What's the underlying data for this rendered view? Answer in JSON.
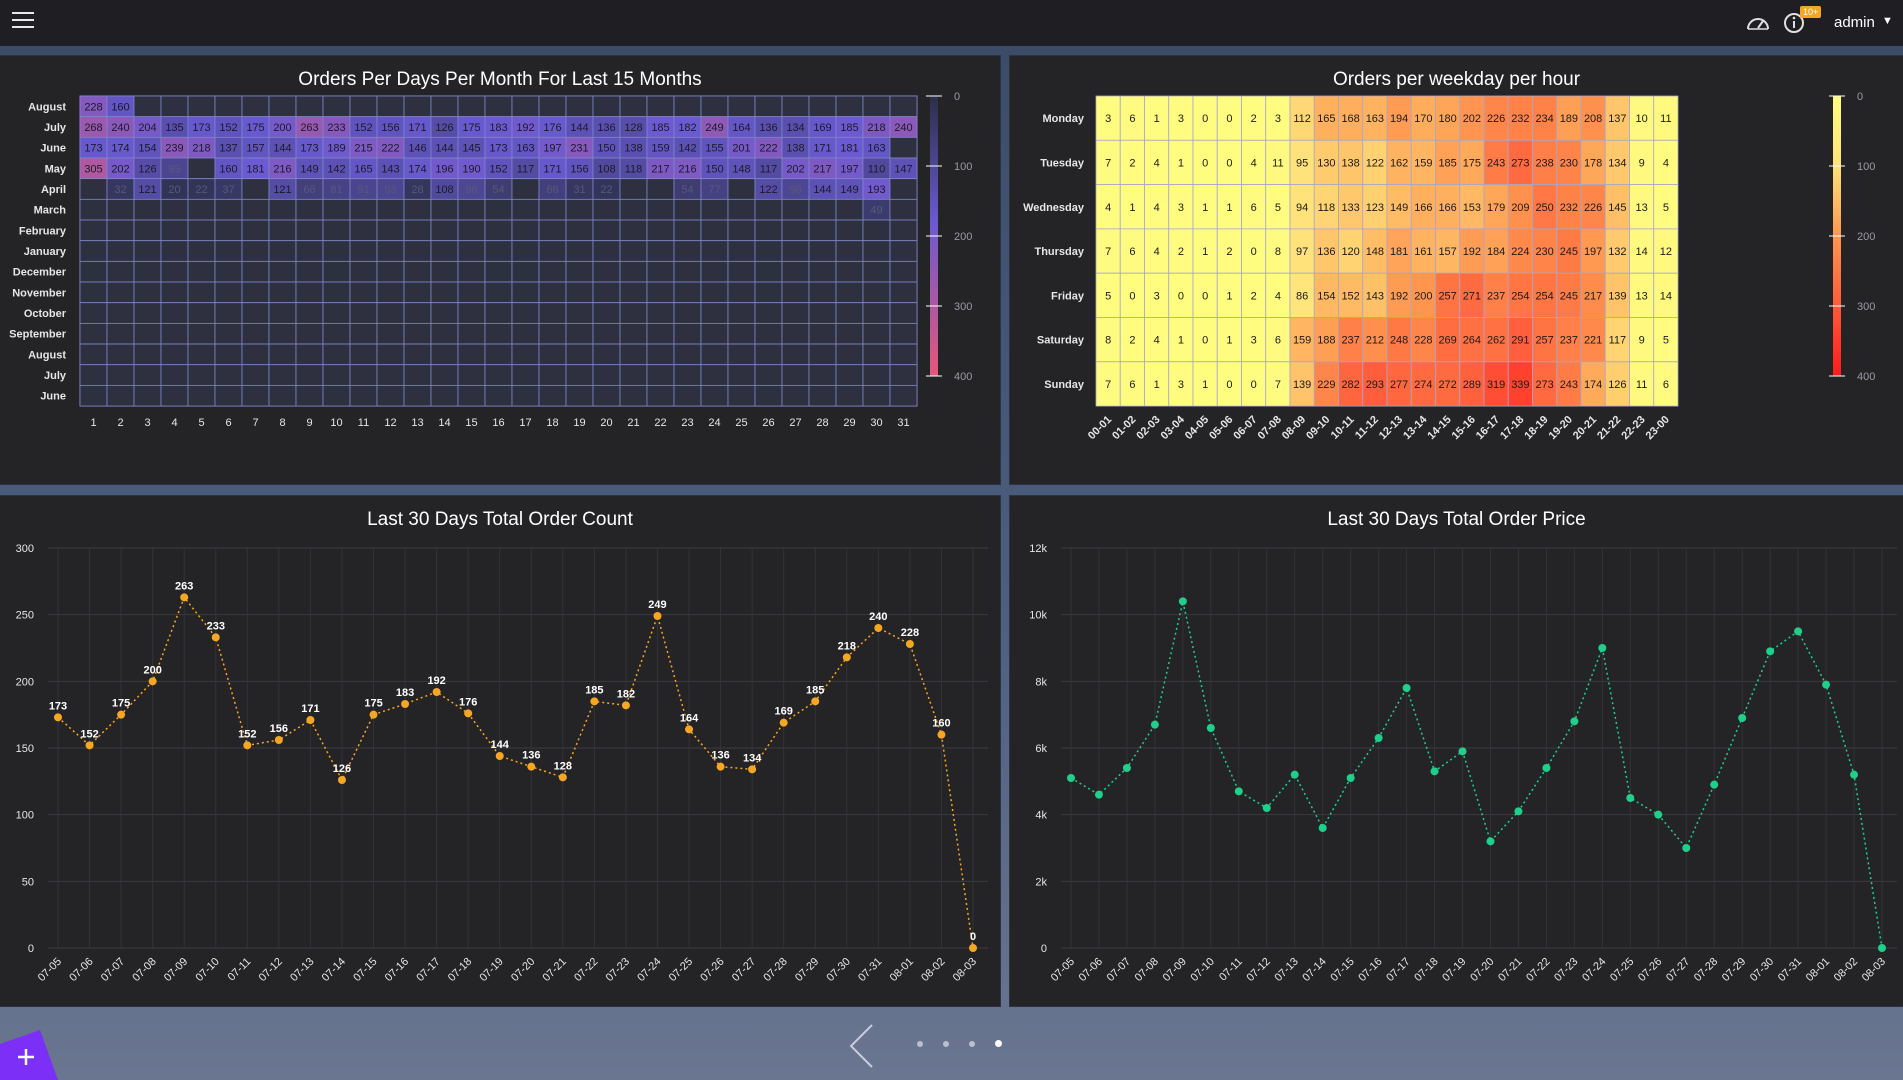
{
  "header": {
    "user": "admin",
    "badge": "10+"
  },
  "pager": {
    "pages": 4,
    "active": 3
  },
  "colors": {
    "orange": "#f5a623",
    "green": "#1fcf8a",
    "purple_low": "#2b2f48",
    "purple_mid": "#6a5ad2",
    "purple_high": "#e5577a",
    "heat_low": "#fffd80",
    "heat_high": "#ff1a1a"
  },
  "panels": {
    "heatmap_month": {
      "title": "Orders Per Days Per Month For Last 15 Months"
    },
    "heatmap_week": {
      "title": "Orders per weekday per hour"
    },
    "order_count": {
      "title": "Last 30 Days Total Order Count"
    },
    "order_price": {
      "title": "Last 30 Days Total Order Price"
    }
  },
  "chart_data": [
    {
      "type": "heatmap",
      "title": "Orders Per Days Per Month For Last 15 Months",
      "y_categories": [
        "August",
        "July",
        "June",
        "May",
        "April",
        "March",
        "February",
        "January",
        "December",
        "November",
        "October",
        "September",
        "August",
        "July",
        "June"
      ],
      "x_categories": [
        "1",
        "2",
        "3",
        "4",
        "5",
        "6",
        "7",
        "8",
        "9",
        "10",
        "11",
        "12",
        "13",
        "14",
        "15",
        "16",
        "17",
        "18",
        "19",
        "20",
        "21",
        "22",
        "23",
        "24",
        "25",
        "26",
        "27",
        "28",
        "29",
        "30",
        "31"
      ],
      "scale": {
        "min": 0,
        "max": 400,
        "ticks": [
          "0",
          "100",
          "200",
          "300",
          "400"
        ]
      },
      "rows": [
        [
          228,
          160,
          null,
          null,
          null,
          null,
          null,
          null,
          null,
          null,
          null,
          null,
          null,
          null,
          null,
          null,
          null,
          null,
          null,
          null,
          null,
          null,
          null,
          null,
          null,
          null,
          null,
          null,
          null,
          null,
          null
        ],
        [
          268,
          240,
          204,
          135,
          173,
          152,
          175,
          200,
          263,
          233,
          152,
          156,
          171,
          126,
          175,
          183,
          192,
          176,
          144,
          136,
          128,
          185,
          182,
          249,
          164,
          136,
          134,
          169,
          185,
          218,
          240
        ],
        [
          173,
          174,
          154,
          239,
          218,
          137,
          157,
          144,
          173,
          189,
          215,
          222,
          146,
          144,
          145,
          173,
          163,
          197,
          231,
          150,
          138,
          159,
          142,
          155,
          201,
          222,
          138,
          171,
          181,
          163,
          null
        ],
        [
          305,
          202,
          126,
          95,
          null,
          160,
          181,
          216,
          149,
          142,
          165,
          143,
          174,
          196,
          190,
          152,
          117,
          171,
          156,
          108,
          118,
          217,
          216,
          150,
          148,
          117,
          202,
          217,
          197,
          110,
          147
        ],
        [
          null,
          32,
          121,
          20,
          22,
          37,
          null,
          121,
          66,
          81,
          91,
          93,
          28,
          108,
          96,
          54,
          null,
          68,
          31,
          22,
          null,
          null,
          54,
          77,
          null,
          122,
          98,
          144,
          149,
          193,
          null
        ],
        [
          null,
          null,
          null,
          null,
          null,
          null,
          null,
          null,
          null,
          null,
          null,
          null,
          null,
          null,
          null,
          null,
          null,
          null,
          null,
          null,
          null,
          null,
          null,
          null,
          null,
          null,
          null,
          null,
          null,
          49,
          null
        ],
        [
          null,
          null,
          null,
          null,
          null,
          null,
          null,
          null,
          null,
          null,
          null,
          null,
          null,
          null,
          null,
          null,
          null,
          null,
          null,
          null,
          null,
          null,
          null,
          null,
          null,
          null,
          null,
          null,
          null,
          null,
          null
        ],
        [
          null,
          null,
          null,
          null,
          null,
          null,
          null,
          null,
          null,
          null,
          null,
          null,
          null,
          null,
          null,
          null,
          null,
          null,
          null,
          null,
          null,
          null,
          null,
          null,
          null,
          null,
          null,
          null,
          null,
          null,
          null
        ],
        [
          null,
          null,
          null,
          null,
          null,
          null,
          null,
          null,
          null,
          null,
          null,
          null,
          null,
          null,
          null,
          null,
          null,
          null,
          null,
          null,
          null,
          null,
          null,
          null,
          null,
          null,
          null,
          null,
          null,
          null,
          null
        ],
        [
          null,
          null,
          null,
          null,
          null,
          null,
          null,
          null,
          null,
          null,
          null,
          null,
          null,
          null,
          null,
          null,
          null,
          null,
          null,
          null,
          null,
          null,
          null,
          null,
          null,
          null,
          null,
          null,
          null,
          null,
          null
        ],
        [
          null,
          null,
          null,
          null,
          null,
          null,
          null,
          null,
          null,
          null,
          null,
          null,
          null,
          null,
          null,
          null,
          null,
          null,
          null,
          null,
          null,
          null,
          null,
          null,
          null,
          null,
          null,
          null,
          null,
          null,
          null
        ],
        [
          null,
          null,
          null,
          null,
          null,
          null,
          null,
          null,
          null,
          null,
          null,
          null,
          null,
          null,
          null,
          null,
          null,
          null,
          null,
          null,
          null,
          null,
          null,
          null,
          null,
          null,
          null,
          null,
          null,
          null,
          null
        ],
        [
          null,
          null,
          null,
          null,
          null,
          null,
          null,
          null,
          null,
          null,
          null,
          null,
          null,
          null,
          null,
          null,
          null,
          null,
          null,
          null,
          null,
          null,
          null,
          null,
          null,
          null,
          null,
          null,
          null,
          null,
          null
        ],
        [
          null,
          null,
          null,
          null,
          null,
          null,
          null,
          null,
          null,
          null,
          null,
          null,
          null,
          null,
          null,
          null,
          null,
          null,
          null,
          null,
          null,
          null,
          null,
          null,
          null,
          null,
          null,
          null,
          null,
          null,
          null
        ],
        [
          null,
          null,
          null,
          null,
          null,
          null,
          null,
          null,
          null,
          null,
          null,
          null,
          null,
          null,
          null,
          null,
          null,
          null,
          null,
          null,
          null,
          null,
          null,
          null,
          null,
          null,
          null,
          null,
          null,
          null,
          null
        ]
      ]
    },
    {
      "type": "heatmap",
      "title": "Orders per weekday per hour",
      "y_categories": [
        "Monday",
        "Tuesday",
        "Wednesday",
        "Thursday",
        "Friday",
        "Saturday",
        "Sunday"
      ],
      "x_categories": [
        "00-01",
        "01-02",
        "02-03",
        "03-04",
        "04-05",
        "05-06",
        "06-07",
        "07-08",
        "08-09",
        "09-10",
        "10-11",
        "11-12",
        "12-13",
        "13-14",
        "14-15",
        "15-16",
        "16-17",
        "17-18",
        "18-19",
        "19-20",
        "20-21",
        "21-22",
        "22-23",
        "23-00"
      ],
      "scale": {
        "min": 0,
        "max": 400,
        "ticks": [
          "0",
          "100",
          "200",
          "300",
          "400"
        ]
      },
      "rows": [
        [
          3,
          6,
          1,
          3,
          0,
          0,
          2,
          3,
          112,
          165,
          168,
          163,
          194,
          170,
          180,
          202,
          226,
          232,
          234,
          189,
          208,
          137,
          10,
          11
        ],
        [
          7,
          2,
          4,
          1,
          0,
          0,
          4,
          11,
          95,
          130,
          138,
          122,
          162,
          159,
          185,
          175,
          243,
          273,
          238,
          230,
          178,
          134,
          9,
          4
        ],
        [
          4,
          1,
          4,
          3,
          1,
          1,
          6,
          5,
          94,
          118,
          133,
          123,
          149,
          166,
          166,
          153,
          179,
          209,
          250,
          232,
          226,
          145,
          13,
          5
        ],
        [
          7,
          6,
          4,
          2,
          1,
          2,
          0,
          8,
          97,
          136,
          120,
          148,
          181,
          161,
          157,
          192,
          184,
          224,
          230,
          245,
          197,
          132,
          14,
          12
        ],
        [
          5,
          0,
          3,
          0,
          0,
          1,
          2,
          4,
          86,
          154,
          152,
          143,
          192,
          200,
          257,
          271,
          237,
          254,
          254,
          245,
          217,
          139,
          13,
          14
        ],
        [
          8,
          2,
          4,
          1,
          0,
          1,
          3,
          6,
          159,
          188,
          237,
          212,
          248,
          228,
          269,
          264,
          262,
          291,
          257,
          237,
          221,
          117,
          9,
          5
        ],
        [
          7,
          6,
          1,
          3,
          1,
          0,
          0,
          7,
          139,
          229,
          282,
          293,
          277,
          274,
          272,
          289,
          319,
          339,
          273,
          243,
          174,
          126,
          11,
          6
        ]
      ]
    },
    {
      "type": "line",
      "title": "Last 30 Days Total Order Count",
      "x": [
        "07-05",
        "07-06",
        "07-07",
        "07-08",
        "07-09",
        "07-10",
        "07-11",
        "07-12",
        "07-13",
        "07-14",
        "07-15",
        "07-16",
        "07-17",
        "07-18",
        "07-19",
        "07-20",
        "07-21",
        "07-22",
        "07-23",
        "07-24",
        "07-25",
        "07-26",
        "07-27",
        "07-28",
        "07-29",
        "07-30",
        "07-31",
        "08-01",
        "08-02",
        "08-03"
      ],
      "values": [
        173,
        152,
        175,
        200,
        263,
        233,
        152,
        156,
        171,
        126,
        175,
        183,
        192,
        176,
        144,
        136,
        128,
        185,
        182,
        249,
        164,
        136,
        134,
        169,
        185,
        218,
        240,
        228,
        160,
        0
      ],
      "ylim": [
        0,
        300
      ],
      "yticks": [
        "0",
        "50",
        "100",
        "150",
        "200",
        "250",
        "300"
      ],
      "data_labels": true
    },
    {
      "type": "line",
      "title": "Last 30 Days Total Order Price",
      "x": [
        "07-05",
        "07-06",
        "07-07",
        "07-08",
        "07-09",
        "07-10",
        "07-11",
        "07-12",
        "07-13",
        "07-14",
        "07-15",
        "07-16",
        "07-17",
        "07-18",
        "07-19",
        "07-20",
        "07-21",
        "07-22",
        "07-23",
        "07-24",
        "07-25",
        "07-26",
        "07-27",
        "07-28",
        "07-29",
        "07-30",
        "07-31",
        "08-01",
        "08-02",
        "08-03"
      ],
      "values": [
        5100,
        4600,
        5400,
        6700,
        10400,
        6600,
        4700,
        4200,
        5200,
        3600,
        5100,
        6300,
        7800,
        5300,
        5900,
        3200,
        4100,
        5400,
        6800,
        9000,
        4500,
        4000,
        3000,
        4900,
        6900,
        8900,
        9500,
        7900,
        5200,
        0
      ],
      "ylim": [
        0,
        12000
      ],
      "yticks": [
        "0",
        "2k",
        "4k",
        "6k",
        "8k",
        "10k",
        "12k"
      ],
      "data_labels": false
    }
  ]
}
